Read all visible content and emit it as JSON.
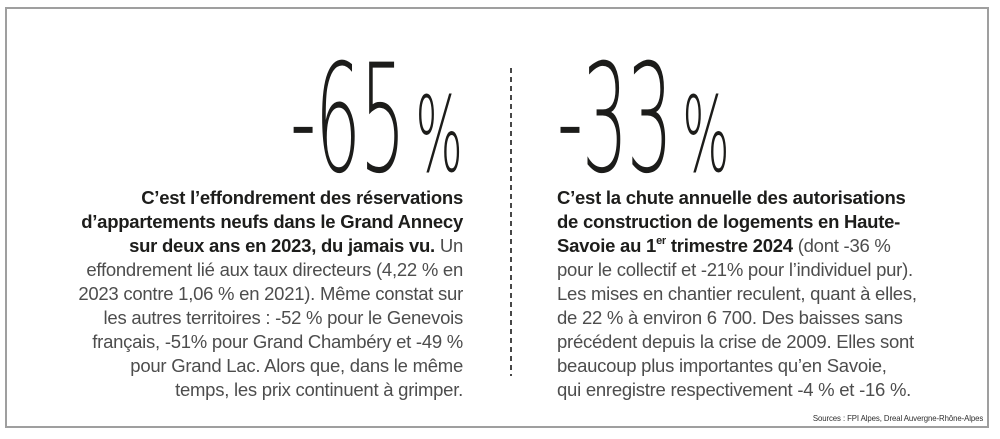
{
  "accent_color": "#1d1d1b",
  "border_color": "#9f9f9f",
  "left": {
    "value": "-65",
    "unit": "%",
    "bold_lines": [
      "C’est l’effondrement des réservations",
      "d’appartements neufs dans le Grand Annecy"
    ],
    "line3_bold": "sur deux ans en 2023, du jamais vu.",
    "line3_rest": " Un",
    "body_lines": [
      "effondrement lié aux taux directeurs (4,22 % en",
      "2023 contre 1,06 % en 2021). Même constat sur",
      "les autres territoires : -52 % pour le Genevois",
      "français, -51% pour Grand Chambéry et -49 %",
      "pour Grand Lac. Alors que, dans le même",
      "temps, les prix continuent à grimper."
    ]
  },
  "right": {
    "value": "-33",
    "unit": "%",
    "bold_lines": [
      "C’est la chute annuelle des autorisations",
      "de construction de logements en Haute-"
    ],
    "line3_bold_a": "Savoie au 1",
    "line3_sup": "er",
    "line3_bold_b": " trimestre 2024",
    "line3_rest": " (dont -36 %",
    "body_lines": [
      "pour le collectif et -21% pour l’individuel pur).",
      "Les mises en chantier reculent, quant à elles,",
      "de 22 % à environ 6 700. Des baisses sans",
      "précédent depuis la crise de 2009. Elles sont",
      "beaucoup plus importantes qu’en Savoie,",
      "qui enregistre respectivement -4 % et -16 %."
    ]
  },
  "sources": "Sources : FPI Alpes, Dreal Auvergne-Rhône-Alpes"
}
